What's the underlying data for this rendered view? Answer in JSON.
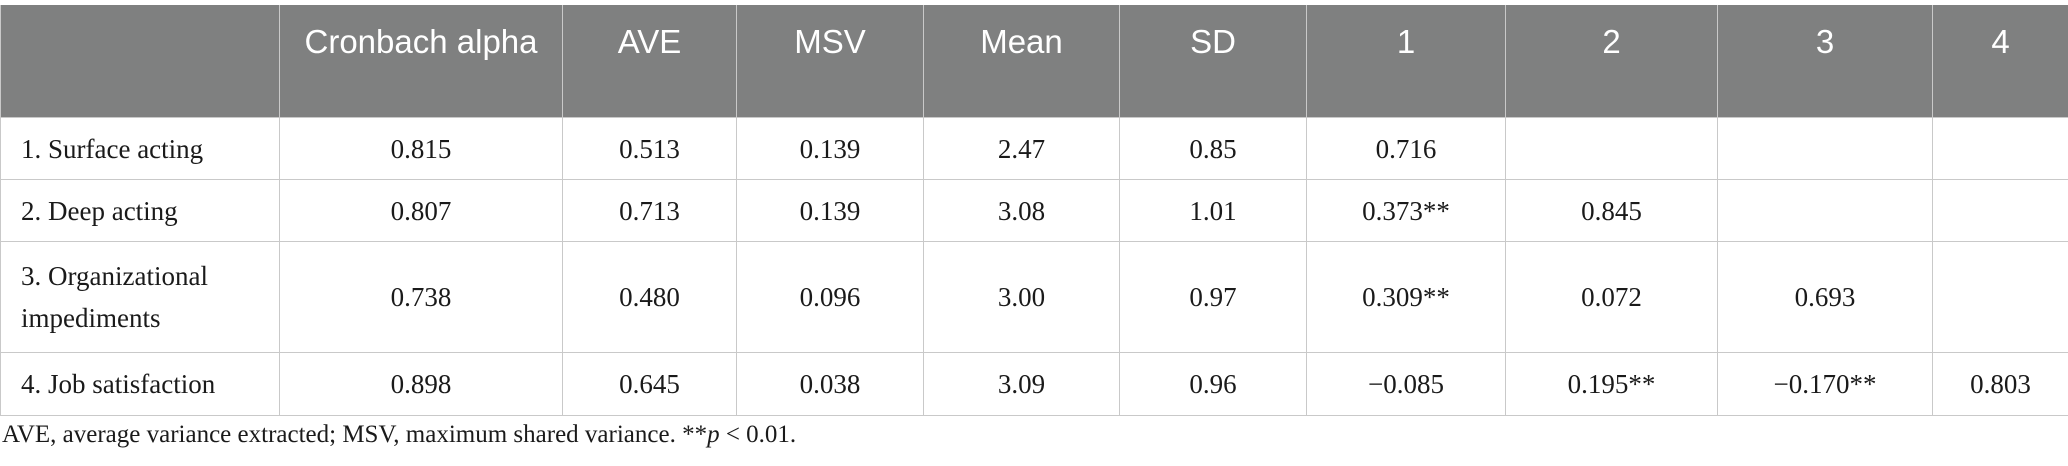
{
  "table": {
    "headers": [
      "",
      "Cronbach alpha",
      "AVE",
      "MSV",
      "Mean",
      "SD",
      "1",
      "2",
      "3",
      "4"
    ],
    "rows": [
      {
        "label": "1. Surface acting",
        "cells": [
          "0.815",
          "0.513",
          "0.139",
          "2.47",
          "0.85",
          "0.716",
          "",
          "",
          ""
        ]
      },
      {
        "label": "2. Deep acting",
        "cells": [
          "0.807",
          "0.713",
          "0.139",
          "3.08",
          "1.01",
          "0.373**",
          "0.845",
          "",
          ""
        ]
      },
      {
        "label": "3. Organizational impediments",
        "cells": [
          "0.738",
          "0.480",
          "0.096",
          "3.00",
          "0.97",
          "0.309**",
          "0.072",
          "0.693",
          ""
        ]
      },
      {
        "label": "4. Job satisfaction",
        "cells": [
          "0.898",
          "0.645",
          "0.038",
          "3.09",
          "0.96",
          "−0.085",
          "0.195**",
          "−0.170**",
          "0.803"
        ]
      }
    ]
  },
  "note": {
    "text_before": "AVE, average variance extracted; MSV, maximum shared variance. **",
    "italic": "p",
    "text_after": " < 0.01."
  }
}
